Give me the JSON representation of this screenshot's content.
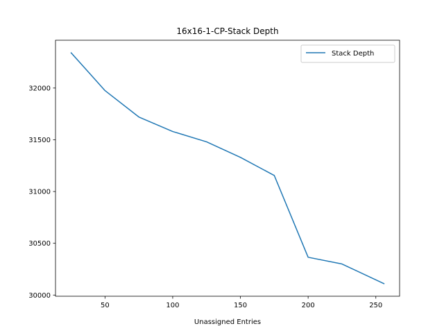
{
  "chart_data": {
    "type": "line",
    "title": "16x16-1-CP-Stack Depth",
    "xlabel": "Unassigned Entries",
    "ylabel": "",
    "x": [
      25,
      50,
      75,
      100,
      125,
      150,
      175,
      200,
      225,
      256
    ],
    "series": [
      {
        "name": "Stack Depth",
        "color": "#1f77b4",
        "values": [
          32340,
          31975,
          31720,
          31580,
          31480,
          31330,
          31155,
          30365,
          30300,
          30110
        ]
      }
    ],
    "xlim": [
      13.45,
      267.55
    ],
    "ylim": [
      29988.5,
      32461.5
    ],
    "xticks": [
      50,
      100,
      150,
      200,
      250
    ],
    "yticks": [
      30000,
      30500,
      31000,
      31500,
      32000
    ],
    "legend_position": "top-right",
    "grid": false
  }
}
